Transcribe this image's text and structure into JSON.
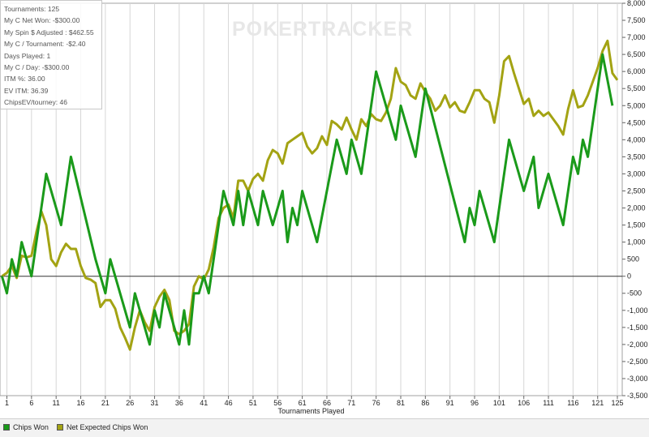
{
  "watermark": "POKERTRACKER",
  "stats": [
    "Tournaments: 125",
    "My C Net Won: -$300.00",
    "My Spin $ Adjusted : $462.55",
    "My C / Tournament: -$2.40",
    "Days Played: 1",
    "My C / Day: -$300.00",
    "ITM %: 36.00",
    "EV ITM: 36.39",
    "ChipsEV/tourney: 46"
  ],
  "legend": [
    {
      "label": "Chips Won",
      "color": "#1a9a1a"
    },
    {
      "label": "Net Expected Chips Won",
      "color": "#a3a313"
    }
  ],
  "chart_data": {
    "type": "line",
    "xlabel": "Tournaments Played",
    "ylabel": "",
    "xlim": [
      0,
      125
    ],
    "ylim": [
      -3500,
      8000
    ],
    "x_ticks": [
      1,
      6,
      11,
      16,
      21,
      26,
      31,
      36,
      41,
      46,
      51,
      56,
      61,
      66,
      71,
      76,
      81,
      86,
      91,
      96,
      101,
      106,
      111,
      116,
      121,
      125
    ],
    "y_ticks": [
      "-3,500",
      "-3,000",
      "-2,500",
      "-2,000",
      "-1,500",
      "-1,000",
      "-500",
      "0",
      "500",
      "1,000",
      "1,500",
      "2,000",
      "2,500",
      "3,000",
      "3,500",
      "4,000",
      "4,500",
      "5,000",
      "5,500",
      "6,000",
      "6,500",
      "7,000",
      "7,500",
      "8,000"
    ],
    "y_tick_values": [
      -3500,
      -3000,
      -2500,
      -2000,
      -1500,
      -1000,
      -500,
      0,
      500,
      1000,
      1500,
      2000,
      2500,
      3000,
      3500,
      4000,
      4500,
      5000,
      5500,
      6000,
      6500,
      7000,
      7500,
      8000
    ],
    "grid": "vertical",
    "series": [
      {
        "name": "Chips Won",
        "color": "#1a9a1a",
        "points": [
          [
            0,
            0
          ],
          [
            1,
            -500
          ],
          [
            2,
            500
          ],
          [
            3,
            0
          ],
          [
            4,
            1000
          ],
          [
            6,
            0
          ],
          [
            9,
            3000
          ],
          [
            12,
            1500
          ],
          [
            14,
            3500
          ],
          [
            19,
            500
          ],
          [
            20,
            0
          ],
          [
            21,
            -500
          ],
          [
            22,
            500
          ],
          [
            26,
            -1500
          ],
          [
            27,
            -500
          ],
          [
            29,
            -1500
          ],
          [
            30,
            -2000
          ],
          [
            31,
            -1000
          ],
          [
            32,
            -1500
          ],
          [
            33,
            -500
          ],
          [
            36,
            -2000
          ],
          [
            37,
            -1000
          ],
          [
            38,
            -2000
          ],
          [
            39,
            -500
          ],
          [
            40,
            -500
          ],
          [
            41,
            0
          ],
          [
            42,
            -500
          ],
          [
            45,
            2500
          ],
          [
            47,
            1500
          ],
          [
            48,
            2500
          ],
          [
            49,
            1500
          ],
          [
            50,
            2500
          ],
          [
            52,
            1500
          ],
          [
            53,
            2500
          ],
          [
            55,
            1500
          ],
          [
            57,
            2500
          ],
          [
            58,
            1000
          ],
          [
            59,
            2000
          ],
          [
            60,
            1500
          ],
          [
            61,
            2500
          ],
          [
            64,
            1000
          ],
          [
            68,
            4000
          ],
          [
            70,
            3000
          ],
          [
            71,
            4000
          ],
          [
            73,
            3000
          ],
          [
            76,
            6000
          ],
          [
            80,
            4000
          ],
          [
            81,
            5000
          ],
          [
            84,
            3500
          ],
          [
            86,
            5500
          ],
          [
            94,
            1000
          ],
          [
            95,
            2000
          ],
          [
            96,
            1500
          ],
          [
            97,
            2500
          ],
          [
            100,
            1000
          ],
          [
            103,
            4000
          ],
          [
            106,
            2500
          ],
          [
            108,
            3500
          ],
          [
            109,
            2000
          ],
          [
            111,
            3000
          ],
          [
            114,
            1500
          ],
          [
            116,
            3500
          ],
          [
            117,
            3000
          ],
          [
            118,
            4000
          ],
          [
            119,
            3500
          ],
          [
            122,
            6500
          ],
          [
            124,
            5000
          ]
        ]
      },
      {
        "name": "Net Expected Chips Won",
        "color": "#a3a313",
        "points": [
          [
            0,
            0
          ],
          [
            1,
            100
          ],
          [
            2,
            300
          ],
          [
            3,
            -50
          ],
          [
            4,
            600
          ],
          [
            5,
            550
          ],
          [
            6,
            600
          ],
          [
            7,
            1300
          ],
          [
            8,
            1900
          ],
          [
            9,
            1500
          ],
          [
            10,
            500
          ],
          [
            11,
            300
          ],
          [
            12,
            700
          ],
          [
            13,
            950
          ],
          [
            14,
            800
          ],
          [
            15,
            800
          ],
          [
            16,
            300
          ],
          [
            17,
            -50
          ],
          [
            18,
            -100
          ],
          [
            19,
            -200
          ],
          [
            20,
            -900
          ],
          [
            21,
            -700
          ],
          [
            22,
            -700
          ],
          [
            23,
            -950
          ],
          [
            24,
            -1500
          ],
          [
            25,
            -1800
          ],
          [
            26,
            -2150
          ],
          [
            27,
            -1500
          ],
          [
            28,
            -1000
          ],
          [
            29,
            -1350
          ],
          [
            30,
            -1600
          ],
          [
            31,
            -900
          ],
          [
            32,
            -600
          ],
          [
            33,
            -400
          ],
          [
            34,
            -700
          ],
          [
            35,
            -1600
          ],
          [
            36,
            -1700
          ],
          [
            37,
            -1600
          ],
          [
            38,
            -1400
          ],
          [
            39,
            -300
          ],
          [
            40,
            0
          ],
          [
            41,
            -100
          ],
          [
            42,
            200
          ],
          [
            43,
            850
          ],
          [
            44,
            1700
          ],
          [
            45,
            2000
          ],
          [
            46,
            2100
          ],
          [
            47,
            1700
          ],
          [
            48,
            2800
          ],
          [
            49,
            2800
          ],
          [
            50,
            2500
          ],
          [
            51,
            2850
          ],
          [
            52,
            3000
          ],
          [
            53,
            2800
          ],
          [
            54,
            3400
          ],
          [
            55,
            3700
          ],
          [
            56,
            3600
          ],
          [
            57,
            3300
          ],
          [
            58,
            3900
          ],
          [
            59,
            4000
          ],
          [
            60,
            4100
          ],
          [
            61,
            4200
          ],
          [
            62,
            3800
          ],
          [
            63,
            3600
          ],
          [
            64,
            3750
          ],
          [
            65,
            4100
          ],
          [
            66,
            3850
          ],
          [
            67,
            4550
          ],
          [
            68,
            4450
          ],
          [
            69,
            4300
          ],
          [
            70,
            4650
          ],
          [
            71,
            4300
          ],
          [
            72,
            4000
          ],
          [
            73,
            4600
          ],
          [
            74,
            4400
          ],
          [
            75,
            4750
          ],
          [
            76,
            4600
          ],
          [
            77,
            4550
          ],
          [
            78,
            4800
          ],
          [
            79,
            5200
          ],
          [
            80,
            6100
          ],
          [
            81,
            5700
          ],
          [
            82,
            5600
          ],
          [
            83,
            5300
          ],
          [
            84,
            5200
          ],
          [
            85,
            5650
          ],
          [
            86,
            5400
          ],
          [
            87,
            5200
          ],
          [
            88,
            4850
          ],
          [
            89,
            5000
          ],
          [
            90,
            5300
          ],
          [
            91,
            4950
          ],
          [
            92,
            5100
          ],
          [
            93,
            4850
          ],
          [
            94,
            4800
          ],
          [
            95,
            5100
          ],
          [
            96,
            5450
          ],
          [
            97,
            5450
          ],
          [
            98,
            5200
          ],
          [
            99,
            5100
          ],
          [
            100,
            4500
          ],
          [
            101,
            5300
          ],
          [
            102,
            6300
          ],
          [
            103,
            6450
          ],
          [
            104,
            5950
          ],
          [
            105,
            5500
          ],
          [
            106,
            5050
          ],
          [
            107,
            5200
          ],
          [
            108,
            4700
          ],
          [
            109,
            4850
          ],
          [
            110,
            4700
          ],
          [
            111,
            4800
          ],
          [
            112,
            4600
          ],
          [
            113,
            4400
          ],
          [
            114,
            4150
          ],
          [
            115,
            4900
          ],
          [
            116,
            5450
          ],
          [
            117,
            4950
          ],
          [
            118,
            5000
          ],
          [
            119,
            5300
          ],
          [
            120,
            5700
          ],
          [
            121,
            6100
          ],
          [
            122,
            6600
          ],
          [
            123,
            6900
          ],
          [
            124,
            5950
          ],
          [
            125,
            5750
          ]
        ]
      }
    ]
  }
}
